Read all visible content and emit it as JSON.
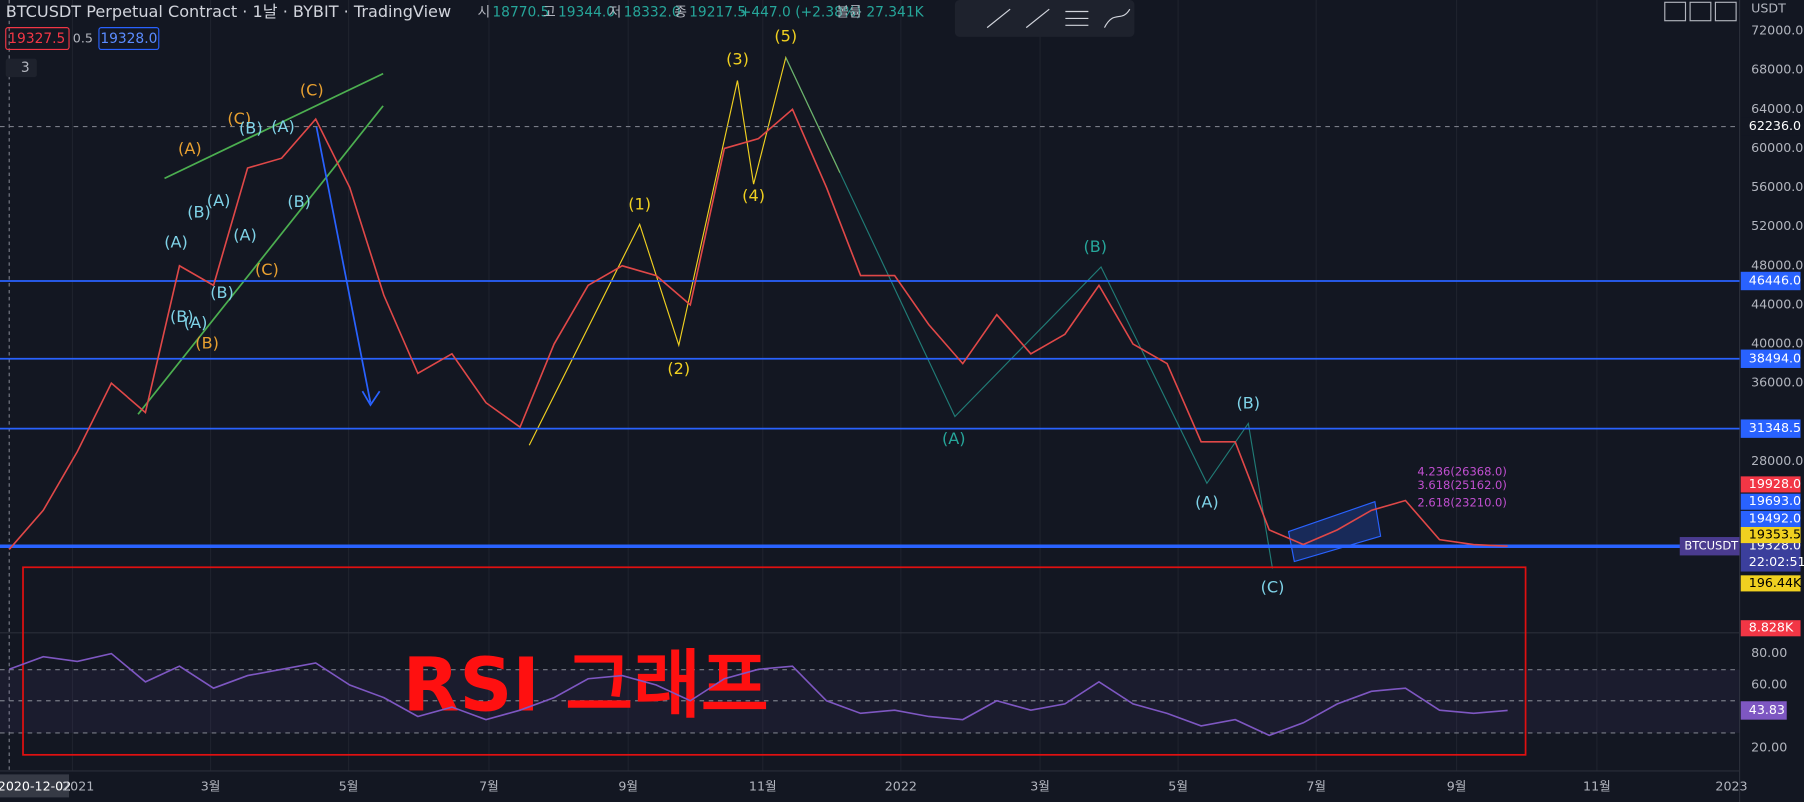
{
  "header": {
    "title": "BTCUSDT Perpetual Contract · 1날 · BYBIT · TradingView",
    "ohlc": [
      [
        "시",
        "18770.5"
      ],
      [
        "고",
        "19344.0"
      ],
      [
        "저",
        "18332.0"
      ],
      [
        "종",
        "19217.5"
      ]
    ],
    "change": "+447.0 (+2.38%)",
    "volume_label": "볼륨",
    "volume": "27.341K",
    "sell": "19327.5",
    "spread": "0.5",
    "buy": "19328.0",
    "indicators": "3",
    "currency": "USDT"
  },
  "price_axis": [
    {
      "value": 72000,
      "label": "72000.0"
    },
    {
      "value": 68000,
      "label": "68000.0"
    },
    {
      "value": 64000,
      "label": "64000.0"
    },
    {
      "value": 60000,
      "label": "60000.0"
    },
    {
      "value": 56000,
      "label": "56000.0"
    },
    {
      "value": 52000,
      "label": "52000.0"
    },
    {
      "value": 48000,
      "label": "48000.0"
    },
    {
      "value": 44000,
      "label": "44000.0"
    },
    {
      "value": 40000,
      "label": "40000.0"
    },
    {
      "value": 36000,
      "label": "36000.0"
    },
    {
      "value": 28000,
      "label": "28000.0"
    }
  ],
  "levels": [
    {
      "value": 62236,
      "label": "62236.0"
    },
    {
      "value": 46446,
      "label": "46446.0"
    },
    {
      "value": 38494,
      "label": "38494.0"
    },
    {
      "value": 31348.5,
      "label": "31348.5"
    }
  ],
  "price_tags": [
    "19928.0",
    "19693.0",
    "19492.0",
    "19353.5",
    "196.44K",
    "8.828K"
  ],
  "last": {
    "symbol": "BTCUSDT",
    "value": 19328,
    "label": "19328.0",
    "countdown": "22:02:51"
  },
  "rsi_axis": [
    {
      "value": 80,
      "label": "80.00"
    },
    {
      "value": 60,
      "label": "60.00"
    },
    {
      "value": 20,
      "label": "20.00"
    }
  ],
  "rsi_last": {
    "value": 43.83,
    "label": "43.83"
  },
  "time_axis": [
    "2021",
    "3월",
    "5월",
    "7월",
    "9월",
    "11월",
    "2022",
    "3월",
    "5월",
    "7월",
    "9월",
    "11월",
    "2023"
  ],
  "cursor_date": "2020-12-02",
  "waves": [
    "(5)",
    "(3)",
    "(1)",
    "(4)",
    "(2)",
    "(B)",
    "(A)",
    "(B)",
    "(A)",
    "(C)",
    "(C)",
    "(C)",
    "(A)",
    "(B)",
    "(A)",
    "(A)",
    "(B)",
    "(A)",
    "(A)",
    "(B)",
    "(C)",
    "(B)",
    "(B)",
    "(A)",
    "(B)"
  ],
  "fib": [
    "4.236(26368.0)",
    "3.618(25162.0)",
    "2.618(23210.0)"
  ],
  "annotation": "RSI 그래프",
  "price_line": {
    "values": [
      19000,
      23000,
      29000,
      36000,
      33000,
      48000,
      46000,
      58000,
      59000,
      63000,
      56000,
      45000,
      37000,
      39000,
      34000,
      31500,
      40000,
      46000,
      48000,
      47000,
      44000,
      60000,
      61000,
      64000,
      56000,
      47000,
      47000,
      42000,
      38000,
      43000,
      39000,
      41000,
      46000,
      40000,
      38000,
      30000,
      30000,
      21000,
      19500,
      21000,
      23000,
      24000,
      20000,
      19500,
      19328
    ]
  },
  "rsi": {
    "values": [
      70,
      78,
      75,
      80,
      62,
      72,
      58,
      66,
      70,
      74,
      60,
      52,
      40,
      46,
      38,
      44,
      52,
      64,
      66,
      60,
      50,
      64,
      70,
      72,
      50,
      42,
      44,
      40,
      38,
      50,
      44,
      48,
      62,
      48,
      42,
      34,
      38,
      28,
      36,
      48,
      56,
      58,
      44,
      42,
      43.83
    ]
  }
}
